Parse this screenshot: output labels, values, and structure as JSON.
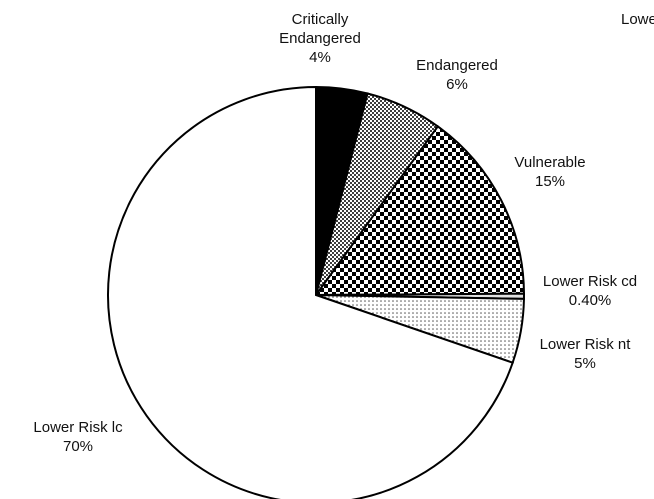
{
  "chart_data": {
    "type": "pie",
    "categories": [
      "Critically Endangered",
      "Endangered",
      "Vulnerable",
      "Lower Risk cd",
      "Lower Risk nt",
      "Lower Risk lc"
    ],
    "values": [
      4,
      6,
      15,
      0.4,
      5,
      70
    ],
    "value_labels": [
      "4%",
      "6%",
      "15%",
      "0.40%",
      "5%",
      "70%"
    ],
    "colors": [
      "#000000",
      "#a8a8a8",
      "#2a2a2a",
      "#e0e0e0",
      "#c8c8c8",
      "#ffffff"
    ],
    "annotations": [
      "Lowe"
    ]
  }
}
